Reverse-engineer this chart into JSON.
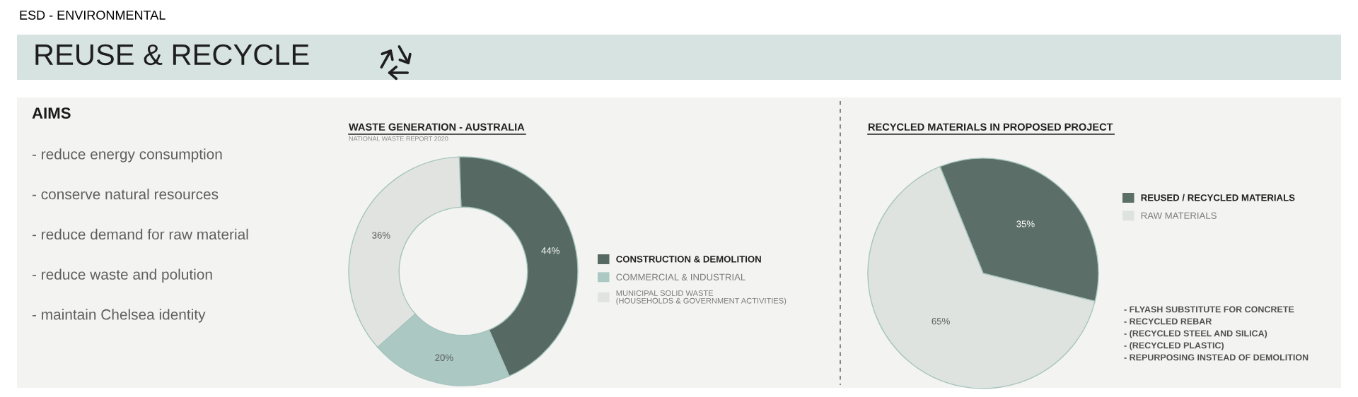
{
  "chart_data": [
    {
      "type": "other",
      "title": "ESD - ENVIRONMENTAL",
      "subtitle": "REUSE & RECYCLE"
    },
    {
      "type": "other",
      "title": "AIMS",
      "annotations": [
        "- reduce energy consumption",
        "- conserve natural resources",
        "- reduce demand for raw material",
        "- reduce waste and polution",
        "- maintain Chelsea identity"
      ]
    },
    {
      "type": "donut",
      "title": "WASTE GENERATION - AUSTRALIA",
      "subtitle": "NATIONAL WASTE REPORT 2020",
      "categories": [
        "CONSTRUCTION & DEMOLITION",
        "COMMERCIAL & INDUSTRIAL",
        "MUNICIPAL SOLID WASTE\n(HOUSEHOLDS & GOVERNMENT ACTIVITIES)"
      ],
      "values": [
        44,
        20,
        36
      ],
      "colors": [
        "#566a63",
        "#abc8c3",
        "#e0e3e0"
      ],
      "value_labels": [
        "44%",
        "20%",
        "36%"
      ],
      "legend": "right"
    },
    {
      "type": "pie",
      "title": "RECYCLED MATERIALS IN PROPOSED PROJECT",
      "categories": [
        "REUSED / RECYCLED MATERIALS",
        "RAW MATERIALS"
      ],
      "values": [
        35,
        65
      ],
      "colors": [
        "#5b6e67",
        "#dfe3e0"
      ],
      "value_labels": [
        "35%",
        "65%"
      ],
      "legend": "right",
      "annotations": [
        "- FLYASH SUBSTITUTE FOR CONCRETE",
        "- RECYCLED REBAR",
        "- (RECYCLED STEEL AND SILICA)",
        "- (RECYCLED PLASTIC)",
        "- REPURPOSING INSTEAD OF DEMOLITION"
      ]
    }
  ]
}
